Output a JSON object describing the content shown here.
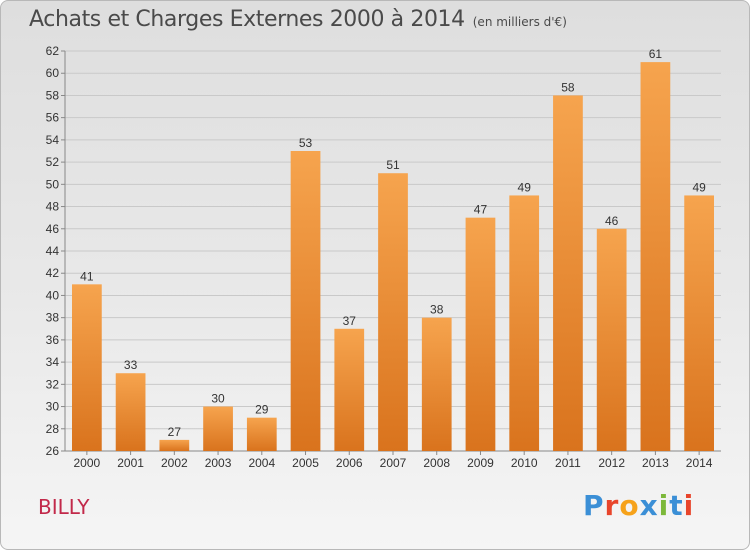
{
  "header": {
    "title": "Achats et Charges Externes 2000 à 2014",
    "unit": "(en milliers d'€)"
  },
  "footer": {
    "place": "BILLY",
    "logo": "Proxiti",
    "logo_colors": [
      "#3b8fd6",
      "#e8452b",
      "#f6a21a",
      "#3b8fd6",
      "#7cb83a",
      "#3b8fd6",
      "#e8452b"
    ]
  },
  "colors": {
    "bar_top": "#f6a44e",
    "bar_bottom": "#d9731d",
    "grid": "#c9c9c9",
    "axis": "#888888",
    "text": "#333333"
  },
  "chart_data": {
    "type": "bar",
    "categories": [
      "2000",
      "2001",
      "2002",
      "2003",
      "2004",
      "2005",
      "2006",
      "2007",
      "2008",
      "2009",
      "2010",
      "2011",
      "2012",
      "2013",
      "2014"
    ],
    "values": [
      41,
      33,
      27,
      30,
      29,
      53,
      37,
      51,
      38,
      47,
      49,
      58,
      46,
      61,
      49
    ],
    "ylim": [
      26,
      62
    ],
    "ytick_step": 2,
    "grid": true
  }
}
